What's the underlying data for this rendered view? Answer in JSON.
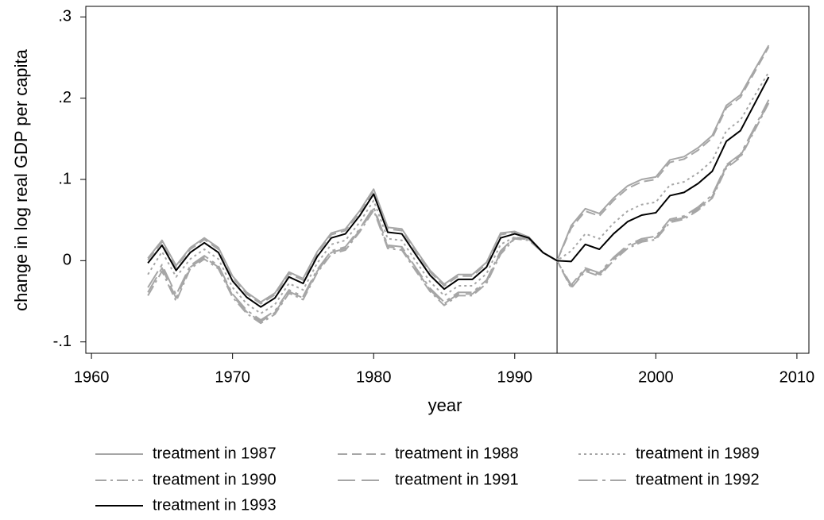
{
  "chart_data": {
    "type": "line",
    "x_label": "year",
    "y_label": "change in log real GDP per capita",
    "xlim": [
      1959.6,
      2010.85
    ],
    "ylim": [
      -0.114,
      0.313
    ],
    "xticks": [
      1960,
      1970,
      1980,
      1990,
      2000,
      2010
    ],
    "yticks": [
      {
        "value": -0.1,
        "label": "-.1"
      },
      0,
      {
        "value": 0.1,
        "label": ".1"
      },
      {
        "value": 0.2,
        "label": ".2"
      },
      {
        "value": 0.3,
        "label": ".3"
      }
    ],
    "vline": 1993,
    "legend": "bottom",
    "x": [
      1964,
      1965,
      1966,
      1967,
      1968,
      1969,
      1970,
      1971,
      1972,
      1973,
      1974,
      1975,
      1976,
      1977,
      1978,
      1979,
      1980,
      1981,
      1982,
      1983,
      1984,
      1985,
      1986,
      1987,
      1988,
      1989,
      1990,
      1991,
      1992,
      1993,
      1994,
      1995,
      1996,
      1997,
      1998,
      1999,
      2000,
      2001,
      2002,
      2003,
      2004,
      2005,
      2006,
      2007,
      2008
    ],
    "series": [
      {
        "name": "treatment in 1987",
        "color": "#a6a6a6",
        "dash": "solid",
        "values": [
          0.003,
          0.025,
          -0.006,
          0.016,
          0.028,
          0.016,
          -0.019,
          -0.039,
          -0.051,
          -0.04,
          -0.014,
          -0.022,
          0.011,
          0.034,
          0.039,
          0.061,
          0.088,
          0.041,
          0.039,
          0.013,
          -0.012,
          -0.029,
          -0.017,
          -0.017,
          -0.002,
          0.034,
          0.036,
          0.029,
          0.01,
          0.0,
          0.043,
          0.064,
          0.058,
          0.077,
          0.092,
          0.1,
          0.103,
          0.124,
          0.128,
          0.139,
          0.154,
          0.191,
          0.204,
          0.235,
          0.265
        ]
      },
      {
        "name": "treatment in 1988",
        "color": "#a6a6a6",
        "dash": "dash",
        "values": [
          0.001,
          0.023,
          -0.008,
          0.014,
          0.026,
          0.014,
          -0.021,
          -0.041,
          -0.053,
          -0.042,
          -0.016,
          -0.024,
          0.009,
          0.032,
          0.037,
          0.059,
          0.086,
          0.039,
          0.037,
          0.011,
          -0.014,
          -0.031,
          -0.019,
          -0.019,
          -0.004,
          0.032,
          0.035,
          0.029,
          0.01,
          0.0,
          0.04,
          0.061,
          0.055,
          0.074,
          0.089,
          0.097,
          0.1,
          0.121,
          0.125,
          0.136,
          0.151,
          0.188,
          0.201,
          0.232,
          0.263
        ]
      },
      {
        "name": "treatment in 1989",
        "color": "#a6a6a6",
        "dash": "dot",
        "values": [
          -0.017,
          0.011,
          -0.02,
          0.002,
          0.014,
          0.002,
          -0.033,
          -0.053,
          -0.065,
          -0.054,
          -0.028,
          -0.036,
          -0.003,
          0.02,
          0.025,
          0.047,
          0.074,
          0.027,
          0.025,
          -0.001,
          -0.026,
          -0.043,
          -0.031,
          -0.031,
          -0.016,
          0.02,
          0.029,
          0.026,
          0.01,
          0.0,
          0.012,
          0.033,
          0.027,
          0.046,
          0.061,
          0.069,
          0.072,
          0.093,
          0.097,
          0.108,
          0.123,
          0.16,
          0.173,
          0.203,
          0.232
        ]
      },
      {
        "name": "treatment in 1990",
        "color": "#a6a6a6",
        "dash": "dashdot",
        "values": [
          -0.043,
          -0.013,
          -0.05,
          -0.01,
          0.002,
          -0.01,
          -0.045,
          -0.065,
          -0.077,
          -0.066,
          -0.04,
          -0.048,
          -0.015,
          0.008,
          0.013,
          0.035,
          0.062,
          0.015,
          0.013,
          -0.013,
          -0.038,
          -0.055,
          -0.043,
          -0.043,
          -0.028,
          0.008,
          0.027,
          0.025,
          0.01,
          0.0,
          -0.034,
          -0.013,
          -0.019,
          0.0,
          0.015,
          0.023,
          0.026,
          0.047,
          0.051,
          0.062,
          0.077,
          0.114,
          0.127,
          0.16,
          0.194
        ]
      },
      {
        "name": "treatment in 1991",
        "color": "#a6a6a6",
        "dash": "longdash",
        "values": [
          -0.039,
          -0.009,
          -0.046,
          -0.008,
          0.004,
          -0.008,
          -0.043,
          -0.063,
          -0.075,
          -0.064,
          -0.038,
          -0.046,
          -0.013,
          0.01,
          0.015,
          0.037,
          0.064,
          0.017,
          0.015,
          -0.011,
          -0.036,
          -0.053,
          -0.041,
          -0.041,
          -0.026,
          0.01,
          0.028,
          0.026,
          0.01,
          0.0,
          -0.032,
          -0.011,
          -0.017,
          0.002,
          0.017,
          0.025,
          0.028,
          0.049,
          0.053,
          0.064,
          0.079,
          0.116,
          0.129,
          0.162,
          0.195
        ]
      },
      {
        "name": "treatment in 1992",
        "color": "#a6a6a6",
        "dash": "longdashdot",
        "values": [
          -0.033,
          -0.005,
          -0.042,
          -0.006,
          0.006,
          -0.006,
          -0.041,
          -0.061,
          -0.073,
          -0.062,
          -0.036,
          -0.044,
          -0.011,
          0.012,
          0.017,
          0.039,
          0.066,
          0.019,
          0.017,
          -0.009,
          -0.034,
          -0.051,
          -0.039,
          -0.039,
          -0.024,
          0.012,
          0.029,
          0.027,
          0.01,
          0.0,
          -0.03,
          -0.009,
          -0.015,
          0.004,
          0.019,
          0.027,
          0.03,
          0.051,
          0.055,
          0.066,
          0.081,
          0.118,
          0.131,
          0.164,
          0.198
        ]
      },
      {
        "name": "treatment in 1993",
        "color": "#000000",
        "dash": "solid",
        "values": [
          -0.003,
          0.019,
          -0.012,
          0.01,
          0.022,
          0.01,
          -0.025,
          -0.045,
          -0.057,
          -0.046,
          -0.02,
          -0.028,
          0.005,
          0.028,
          0.033,
          0.055,
          0.082,
          0.035,
          0.033,
          0.007,
          -0.018,
          -0.035,
          -0.023,
          -0.023,
          -0.008,
          0.028,
          0.033,
          0.028,
          0.01,
          0.0,
          -0.001,
          0.02,
          0.014,
          0.033,
          0.048,
          0.056,
          0.059,
          0.08,
          0.084,
          0.095,
          0.11,
          0.147,
          0.16,
          0.193,
          0.226
        ]
      }
    ]
  }
}
